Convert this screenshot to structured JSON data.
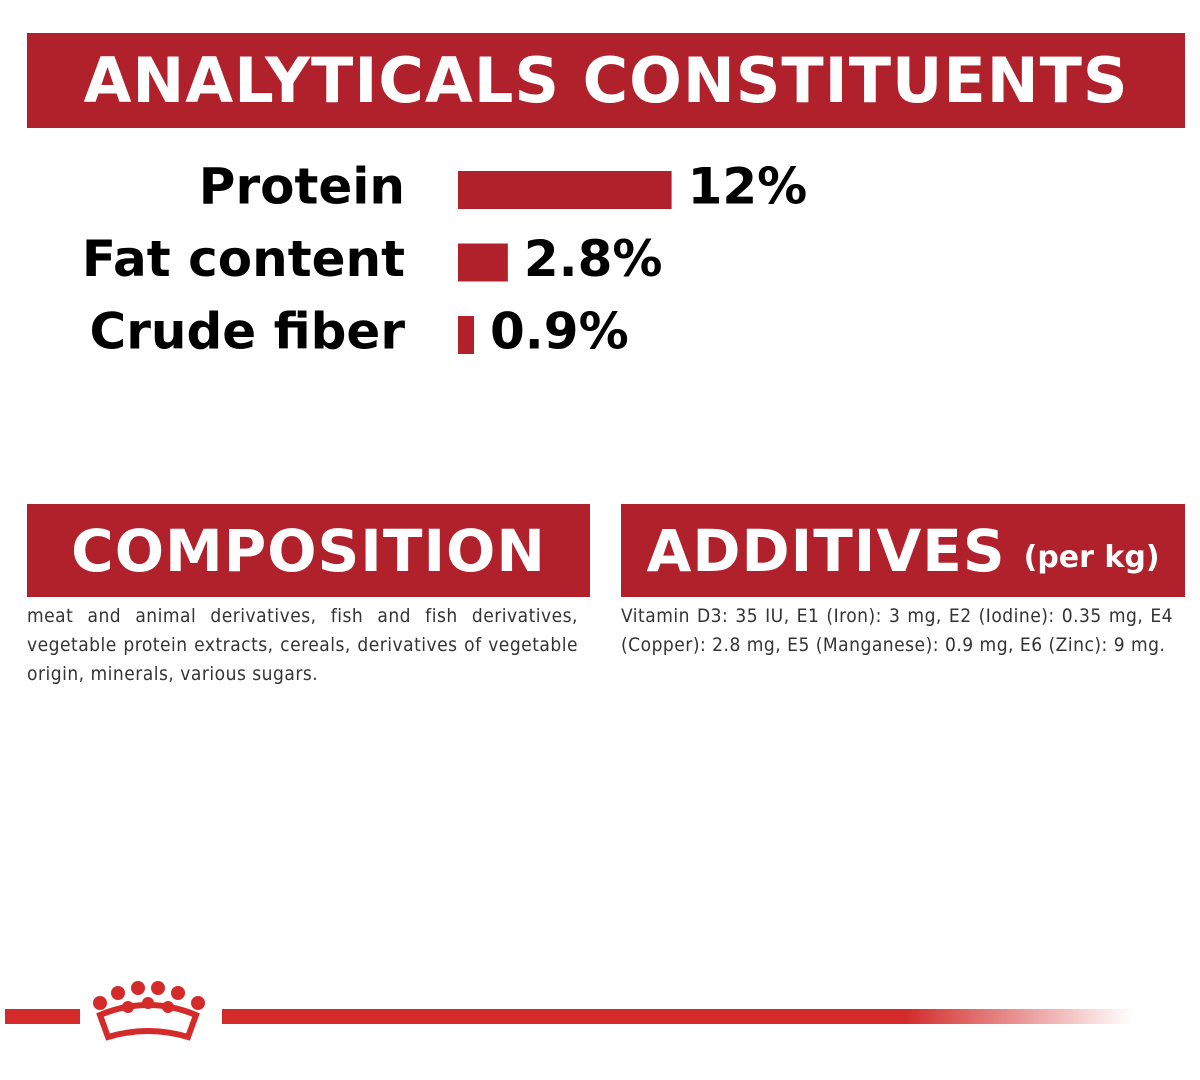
{
  "header": {
    "title": "ANALYTICALS CONSTITUENTS"
  },
  "chart_data": {
    "type": "bar",
    "orientation": "horizontal",
    "color": "#b0212c",
    "categories": [
      "Protein",
      "Fat content",
      "Crude fiber"
    ],
    "values": [
      12,
      2.8,
      0.9
    ],
    "value_labels": [
      "12%",
      "2.8%",
      "0.9%"
    ]
  },
  "composition": {
    "title": "COMPOSITION",
    "text": "meat and animal derivatives, fish and fish derivatives, vegetable protein extracts, cereals, derivatives of vegetable origin, minerals, various sugars."
  },
  "additives": {
    "title": "ADDITIVES",
    "unit": "(per kg)",
    "text": "Vitamin D3: 35 IU, E1 (Iron): 3 mg, E2 (Iodine): 0.35 mg, E4 (Copper): 2.8 mg, E5 (Manganese): 0.9 mg, E6 (Zinc): 9 mg."
  }
}
